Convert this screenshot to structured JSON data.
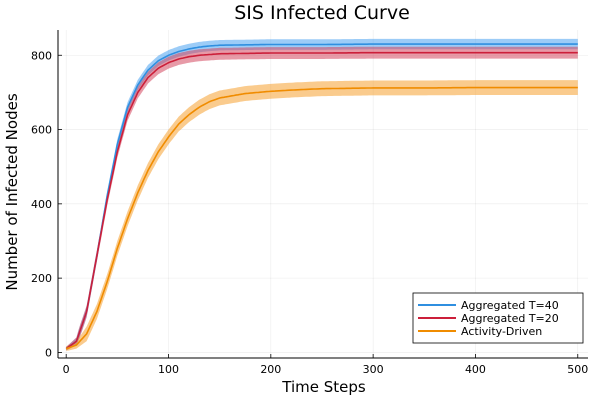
{
  "chart_data": {
    "type": "line",
    "title": "SIS Infected Curve",
    "xlabel": "Time Steps",
    "ylabel": "Number of Infected Nodes",
    "xlim": [
      -8,
      510
    ],
    "ylim": [
      -15,
      868
    ],
    "xticks": [
      0,
      100,
      200,
      300,
      400,
      500
    ],
    "yticks": [
      0,
      200,
      400,
      600,
      800
    ],
    "grid": true,
    "legend_position": "bottom-right",
    "series": [
      {
        "name": "Aggregated T=40",
        "color": "#2f8fe0",
        "band_color": "#4aa3f0",
        "band_halfwidth": 14,
        "x": [
          0,
          10,
          20,
          30,
          40,
          50,
          60,
          70,
          80,
          90,
          100,
          110,
          120,
          130,
          140,
          150,
          175,
          200,
          250,
          300,
          350,
          400,
          450,
          500
        ],
        "y": [
          10,
          30,
          110,
          260,
          420,
          560,
          660,
          720,
          760,
          785,
          800,
          810,
          817,
          822,
          825,
          827,
          828,
          829,
          829,
          830,
          830,
          830,
          830,
          830
        ]
      },
      {
        "name": "Aggregated T=20",
        "color": "#cc1f3a",
        "band_color": "#d4475e",
        "band_halfwidth": 16,
        "x": [
          0,
          10,
          20,
          30,
          40,
          50,
          60,
          70,
          80,
          90,
          100,
          110,
          120,
          130,
          140,
          150,
          175,
          200,
          250,
          300,
          350,
          400,
          450,
          500
        ],
        "y": [
          10,
          30,
          110,
          260,
          410,
          540,
          640,
          700,
          740,
          765,
          780,
          790,
          796,
          800,
          802,
          804,
          805,
          806,
          806,
          807,
          807,
          807,
          807,
          807
        ]
      },
      {
        "name": "Activity-Driven",
        "color": "#f08c00",
        "band_color": "#f5a030",
        "band_halfwidth": 20,
        "x": [
          0,
          10,
          20,
          30,
          40,
          50,
          60,
          70,
          80,
          90,
          100,
          110,
          120,
          130,
          140,
          150,
          175,
          200,
          225,
          250,
          300,
          350,
          400,
          450,
          500
        ],
        "y": [
          10,
          20,
          50,
          110,
          190,
          280,
          360,
          430,
          490,
          540,
          580,
          615,
          640,
          660,
          675,
          685,
          697,
          703,
          707,
          710,
          712,
          712,
          713,
          713,
          713
        ]
      }
    ]
  }
}
